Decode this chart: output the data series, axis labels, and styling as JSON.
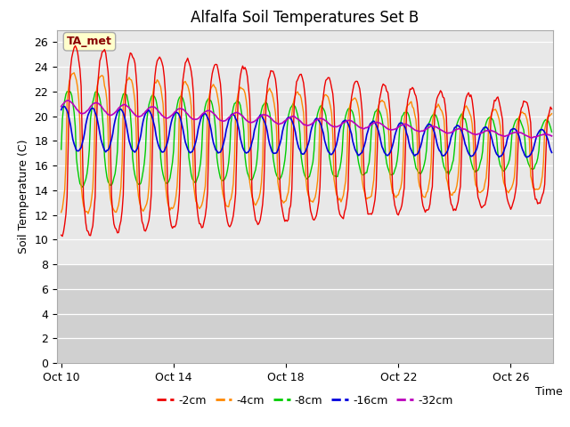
{
  "title": "Alfalfa Soil Temperatures Set B",
  "xlabel": "Time",
  "ylabel": "Soil Temperature (C)",
  "ylim": [
    0,
    27
  ],
  "yticks": [
    0,
    2,
    4,
    6,
    8,
    10,
    12,
    14,
    16,
    18,
    20,
    22,
    24,
    26
  ],
  "xtick_positions": [
    0,
    4,
    8,
    12,
    16
  ],
  "xtick_labels": [
    "Oct 10",
    "Oct 14",
    "Oct 18",
    "Oct 22",
    "Oct 26"
  ],
  "xlim_days": [
    -0.15,
    17.5
  ],
  "line_colors": [
    "#ee0000",
    "#ff8800",
    "#00cc00",
    "#0000dd",
    "#bb00bb"
  ],
  "line_labels": [
    "-2cm",
    "-4cm",
    "-8cm",
    "-16cm",
    "-32cm"
  ],
  "annotation_text": "TA_met",
  "annotation_fg": "#880000",
  "annotation_bg": "#ffffcc",
  "annotation_border": "#aaaaaa",
  "fig_bg": "#ffffff",
  "plot_bg_upper": "#e8e8e8",
  "plot_bg_lower": "#d0d0d0",
  "grid_color": "#ffffff",
  "title_fontsize": 12,
  "axis_label_fontsize": 9,
  "tick_fontsize": 9,
  "legend_fontsize": 9,
  "lower_band_threshold": 8
}
